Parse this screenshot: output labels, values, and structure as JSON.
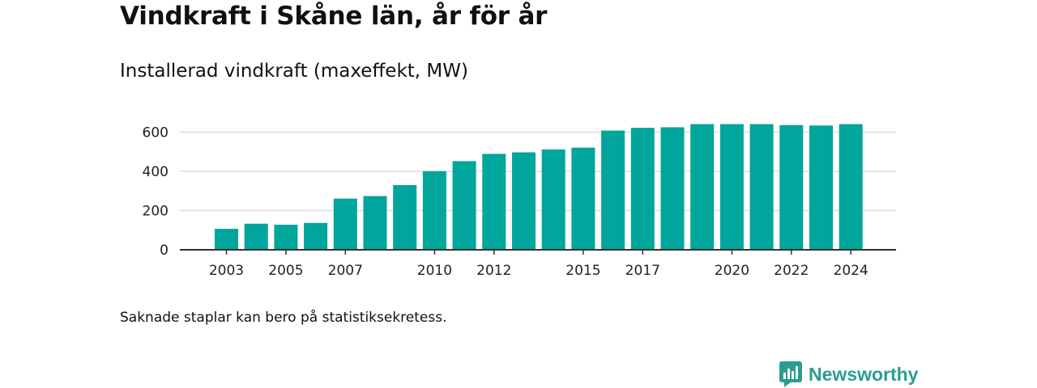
{
  "header": {
    "title": "Vindkraft i Skåne län, år för år",
    "subtitle": "Installerad vindkraft (maxeffekt, MW)"
  },
  "footer": {
    "note": "Saknade staplar kan bero på statistiksekretess.",
    "brand": "Newsworthy"
  },
  "colors": {
    "bar": "#00a59b",
    "grid": "#dddddd",
    "axis": "#333333",
    "brand": "#2a9d8f"
  },
  "icons": {
    "brand_logo": "newsworthy-logo-icon"
  },
  "chart_data": {
    "type": "bar",
    "categories": [
      "2003",
      "2004",
      "2005",
      "2006",
      "2007",
      "2008",
      "2009",
      "2010",
      "2011",
      "2012",
      "2013",
      "2014",
      "2015",
      "2016",
      "2017",
      "2018",
      "2019",
      "2020",
      "2021",
      "2022",
      "2023",
      "2024"
    ],
    "values": [
      107,
      133,
      128,
      137,
      261,
      274,
      330,
      401,
      452,
      489,
      497,
      512,
      521,
      608,
      622,
      625,
      641,
      641,
      641,
      636,
      634,
      641
    ],
    "x_tick_labels": [
      "2003",
      "2005",
      "2007",
      "2010",
      "2012",
      "2015",
      "2017",
      "2020",
      "2022",
      "2024"
    ],
    "y_ticks": [
      0,
      200,
      400,
      600
    ],
    "ylim": [
      0,
      680
    ],
    "grid": true,
    "legend": "none",
    "xlabel": "",
    "ylabel": ""
  }
}
